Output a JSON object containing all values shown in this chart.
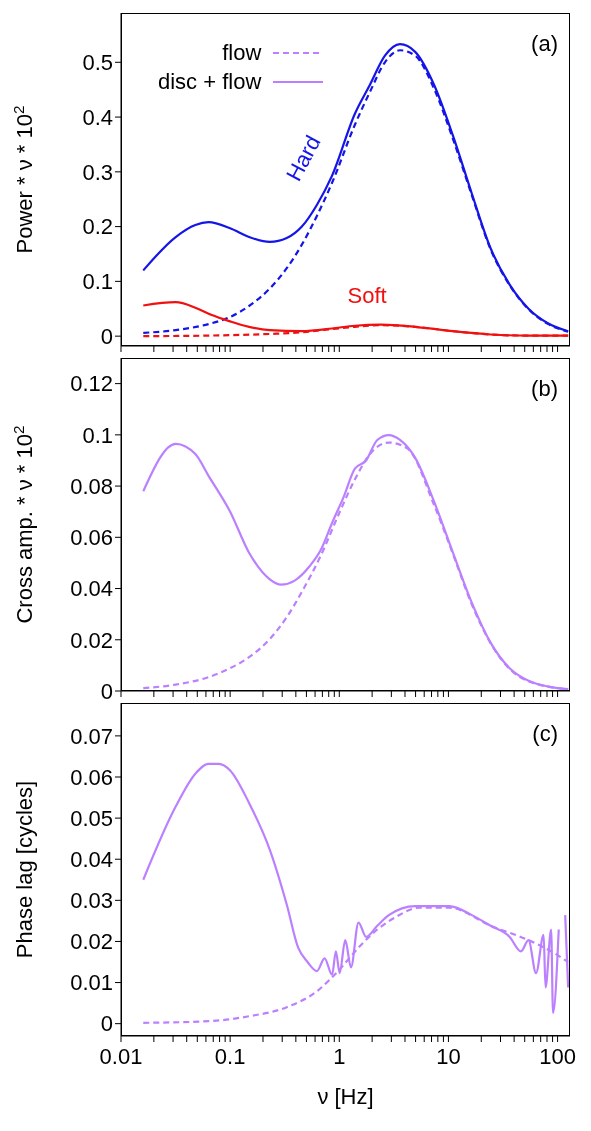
{
  "chart_data": [
    {
      "type": "line",
      "ylabel": "Power * ν * 10$^{2}$",
      "annotations": [
        "(a)"
      ],
      "xlim": [
        0.01,
        130
      ],
      "ylim": [
        -0.018,
        0.59
      ],
      "log": "x",
      "tick_labels": "y",
      "legend": false,
      "marker": "none",
      "xticks": [
        0.01,
        {
          "value": 0.02,
          "label": null
        },
        {
          "value": 0.03,
          "label": null
        },
        {
          "value": 0.04,
          "label": null
        },
        {
          "value": 0.05,
          "label": null
        },
        {
          "value": 0.06,
          "label": null
        },
        {
          "value": 0.07,
          "label": null
        },
        {
          "value": 0.08,
          "label": null
        },
        {
          "value": 0.09,
          "label": null
        },
        0.1,
        {
          "value": 0.2,
          "label": null
        },
        {
          "value": 0.3,
          "label": null
        },
        {
          "value": 0.4,
          "label": null
        },
        {
          "value": 0.5,
          "label": null
        },
        {
          "value": 0.6,
          "label": null
        },
        {
          "value": 0.7,
          "label": null
        },
        {
          "value": 0.8,
          "label": null
        },
        {
          "value": 0.9,
          "label": null
        },
        1,
        {
          "value": 2,
          "label": null
        },
        {
          "value": 3,
          "label": null
        },
        {
          "value": 4,
          "label": null
        },
        {
          "value": 5,
          "label": null
        },
        {
          "value": 6,
          "label": null
        },
        {
          "value": 7,
          "label": null
        },
        {
          "value": 8,
          "label": null
        },
        {
          "value": 9,
          "label": null
        },
        10,
        {
          "value": 20,
          "label": null
        },
        {
          "value": 30,
          "label": null
        },
        {
          "value": 40,
          "label": null
        },
        {
          "value": 50,
          "label": null
        },
        {
          "value": 60,
          "label": null
        },
        {
          "value": 70,
          "label": null
        },
        {
          "value": 80,
          "label": null
        },
        {
          "value": 90,
          "label": null
        },
        100
      ],
      "yticks": [
        0,
        0.1,
        0.2,
        0.3,
        0.4,
        0.5
      ],
      "series": [
        {
          "name": "Hard",
          "color": "#1515e8",
          "line_style": "solid",
          "x": [
            0.016,
            0.0317,
            0.048,
            0.0634,
            0.1,
            0.149,
            0.231,
            0.33,
            0.454,
            0.625,
            0.859,
            1.39,
            1.91,
            2.62,
            3.6,
            4.96,
            7.38,
            11.0,
            16.4,
            24.4,
            36.4,
            54.2,
            80.7,
            125
          ],
          "values": [
            0.12,
            0.181,
            0.203,
            0.208,
            0.197,
            0.181,
            0.172,
            0.179,
            0.2,
            0.24,
            0.293,
            0.406,
            0.459,
            0.512,
            0.533,
            0.519,
            0.459,
            0.366,
            0.26,
            0.16,
            0.094,
            0.05,
            0.024,
            0.009
          ]
        },
        {
          "color": "#1515e8",
          "line_style": "dashed",
          "x": [
            0.016,
            0.0317,
            0.0634,
            0.1,
            0.149,
            0.231,
            0.33,
            0.454,
            0.625,
            0.859,
            1.39,
            1.91,
            2.62,
            3.6,
            4.96,
            7.38,
            11.0,
            16.4,
            24.4,
            36.4,
            54.2,
            80.7,
            125
          ],
          "values": [
            0.006,
            0.011,
            0.022,
            0.035,
            0.055,
            0.087,
            0.124,
            0.167,
            0.22,
            0.28,
            0.386,
            0.446,
            0.5,
            0.522,
            0.512,
            0.452,
            0.36,
            0.257,
            0.158,
            0.093,
            0.049,
            0.023,
            0.008
          ]
        },
        {
          "name": "Soft",
          "color": "#f01010",
          "line_style": "solid",
          "x": [
            0.016,
            0.0317,
            0.048,
            0.067,
            0.1,
            0.149,
            0.231,
            0.454,
            0.859,
            1.39,
            2.42,
            4.96,
            11.0,
            24.4,
            54.2,
            125
          ],
          "values": [
            0.056,
            0.062,
            0.052,
            0.039,
            0.027,
            0.017,
            0.011,
            0.009,
            0.014,
            0.019,
            0.021,
            0.017,
            0.009,
            0.003,
            0.001,
            0.001
          ]
        },
        {
          "color": "#f01010",
          "line_style": "dashed",
          "x": [
            0.016,
            0.0634,
            0.231,
            0.454,
            0.859,
            1.39,
            2.42,
            4.96,
            11.0,
            24.4,
            54.2,
            125
          ],
          "values": [
            0,
            0.001,
            0.004,
            0.007,
            0.013,
            0.017,
            0.02,
            0.017,
            0.009,
            0.003,
            0.001,
            0.001
          ]
        }
      ]
    },
    {
      "type": "line",
      "ylabel": "Cross amp. * ν * 10$^{2}$",
      "annotations": [
        "(b)"
      ],
      "xlim": [
        0.01,
        130
      ],
      "ylim": [
        0,
        0.13
      ],
      "log": "x",
      "tick_labels": "y",
      "legend": "top left",
      "marker": "none",
      "xticks": [
        0.01,
        {
          "value": 0.02,
          "label": null
        },
        {
          "value": 0.03,
          "label": null
        },
        {
          "value": 0.04,
          "label": null
        },
        {
          "value": 0.05,
          "label": null
        },
        {
          "value": 0.06,
          "label": null
        },
        {
          "value": 0.07,
          "label": null
        },
        {
          "value": 0.08,
          "label": null
        },
        {
          "value": 0.09,
          "label": null
        },
        0.1,
        {
          "value": 0.2,
          "label": null
        },
        {
          "value": 0.3,
          "label": null
        },
        {
          "value": 0.4,
          "label": null
        },
        {
          "value": 0.5,
          "label": null
        },
        {
          "value": 0.6,
          "label": null
        },
        {
          "value": 0.7,
          "label": null
        },
        {
          "value": 0.8,
          "label": null
        },
        {
          "value": 0.9,
          "label": null
        },
        1,
        {
          "value": 2,
          "label": null
        },
        {
          "value": 3,
          "label": null
        },
        {
          "value": 4,
          "label": null
        },
        {
          "value": 5,
          "label": null
        },
        {
          "value": 6,
          "label": null
        },
        {
          "value": 7,
          "label": null
        },
        {
          "value": 8,
          "label": null
        },
        {
          "value": 9,
          "label": null
        },
        10,
        {
          "value": 20,
          "label": null
        },
        {
          "value": 30,
          "label": null
        },
        {
          "value": 40,
          "label": null
        },
        {
          "value": 50,
          "label": null
        },
        {
          "value": 60,
          "label": null
        },
        {
          "value": 70,
          "label": null
        },
        {
          "value": 80,
          "label": null
        },
        {
          "value": 90,
          "label": null
        },
        100
      ],
      "yticks": [
        0,
        0.02,
        0.04,
        0.06,
        0.08,
        0.1,
        0.12
      ],
      "series": [
        {
          "name": "flow",
          "color": "#bb80ff",
          "line_style": "dashed",
          "x": [
            0.016,
            0.0317,
            0.0634,
            0.1,
            0.149,
            0.231,
            0.33,
            0.454,
            0.676,
            1.007,
            1.39,
            1.91,
            2.84,
            4.23,
            7.38,
            11.0,
            16.4,
            24.4,
            36.4,
            54.2,
            125
          ],
          "values": [
            0.0011,
            0.0025,
            0.0054,
            0.0089,
            0.0132,
            0.0203,
            0.0288,
            0.0387,
            0.0528,
            0.0698,
            0.0826,
            0.0925,
            0.097,
            0.0946,
            0.0727,
            0.0535,
            0.0337,
            0.0186,
            0.0086,
            0.0038,
            0.0007
          ]
        },
        {
          "name": "disc + flow",
          "color": "#bb80ff",
          "line_style": "solid",
          "x": [
            0.016,
            0.0317,
            0.048,
            0.0634,
            0.1,
            0.149,
            0.231,
            0.293,
            0.387,
            0.532,
            0.676,
            0.859,
            1.09,
            1.39,
            1.76,
            2.23,
            2.84,
            3.6,
            4.96,
            7.38,
            11.0,
            16.4,
            24.4,
            36.4,
            54.2,
            80.7,
            125
          ],
          "values": [
            0.078,
            0.0965,
            0.0925,
            0.084,
            0.07,
            0.054,
            0.0436,
            0.0415,
            0.043,
            0.0486,
            0.055,
            0.0656,
            0.0755,
            0.0868,
            0.09,
            0.098,
            0.0999,
            0.098,
            0.091,
            0.074,
            0.054,
            0.0344,
            0.0188,
            0.0089,
            0.004,
            0.0018,
            0.0007
          ]
        }
      ]
    },
    {
      "type": "line",
      "ylabel": "Phase lag [cycles]",
      "xlabel": "ν [Hz]",
      "annotations": [
        "(c)"
      ],
      "xlim": [
        0.01,
        130
      ],
      "ylim": [
        -0.003,
        0.078
      ],
      "log": "x",
      "legend": false,
      "marker": "none",
      "xticks": [
        0.01,
        {
          "value": 0.02,
          "label": null
        },
        {
          "value": 0.03,
          "label": null
        },
        {
          "value": 0.04,
          "label": null
        },
        {
          "value": 0.05,
          "label": null
        },
        {
          "value": 0.06,
          "label": null
        },
        {
          "value": 0.07,
          "label": null
        },
        {
          "value": 0.08,
          "label": null
        },
        {
          "value": 0.09,
          "label": null
        },
        0.1,
        {
          "value": 0.2,
          "label": null
        },
        {
          "value": 0.3,
          "label": null
        },
        {
          "value": 0.4,
          "label": null
        },
        {
          "value": 0.5,
          "label": null
        },
        {
          "value": 0.6,
          "label": null
        },
        {
          "value": 0.7,
          "label": null
        },
        {
          "value": 0.8,
          "label": null
        },
        {
          "value": 0.9,
          "label": null
        },
        1,
        {
          "value": 2,
          "label": null
        },
        {
          "value": 3,
          "label": null
        },
        {
          "value": 4,
          "label": null
        },
        {
          "value": 5,
          "label": null
        },
        {
          "value": 6,
          "label": null
        },
        {
          "value": 7,
          "label": null
        },
        {
          "value": 8,
          "label": null
        },
        {
          "value": 9,
          "label": null
        },
        10,
        {
          "value": 20,
          "label": null
        },
        {
          "value": 30,
          "label": null
        },
        {
          "value": 40,
          "label": null
        },
        {
          "value": 50,
          "label": null
        },
        {
          "value": 60,
          "label": null
        },
        {
          "value": 70,
          "label": null
        },
        {
          "value": 80,
          "label": null
        },
        {
          "value": 90,
          "label": null
        },
        100
      ],
      "yticks": [
        0,
        0.01,
        0.02,
        0.03,
        0.04,
        0.05,
        0.06,
        0.07
      ],
      "series": [
        {
          "color": "#bb80ff",
          "line_style": "dashed",
          "x": [
            0.016,
            0.0634,
            0.149,
            0.33,
            0.625,
            1.007,
            1.5,
            2.23,
            3.33,
            5.37,
            10.2,
            24.4,
            54.2,
            87.3,
            125
          ],
          "values": [
            0.0002,
            0.0006,
            0.0018,
            0.004,
            0.0079,
            0.0132,
            0.0185,
            0.0229,
            0.026,
            0.0282,
            0.0282,
            0.0238,
            0.0203,
            0.0176,
            0.015
          ]
        },
        {
          "color": "#bb80ff",
          "line_style": "solid",
          "x": [
            0.016,
            0.0317,
            0.048,
            0.0634,
            0.0787,
            0.1,
            0.149,
            0.231,
            0.33,
            0.42,
            0.512,
            0.625,
            0.733,
            0.859,
            0.931,
            1.007,
            1.135,
            1.28,
            1.5,
            1.76,
            2.23,
            2.84,
            4.96,
            10.2,
            16.4,
            24.4,
            36.4,
            46.2,
            54.2,
            63.5,
            74.5,
            77.6,
            87.3,
            90.9,
            102.5,
            106.7,
            117.5,
            125
          ],
          "values": [
            0.035,
            0.0528,
            0.0608,
            0.0632,
            0.0632,
            0.0616,
            0.0537,
            0.0423,
            0.029,
            0.0185,
            0.015,
            0.0128,
            0.0159,
            0.0119,
            0.0176,
            0.0123,
            0.0203,
            0.0137,
            0.0246,
            0.0211,
            0.0238,
            0.0264,
            0.0286,
            0.0286,
            0.0264,
            0.0238,
            0.0211,
            0.0176,
            0.0203,
            0.0123,
            0.0216,
            0.0088,
            0.0229,
            0.0026,
            0.0229,
            null,
            0.0264,
            0.0088
          ]
        }
      ]
    }
  ]
}
